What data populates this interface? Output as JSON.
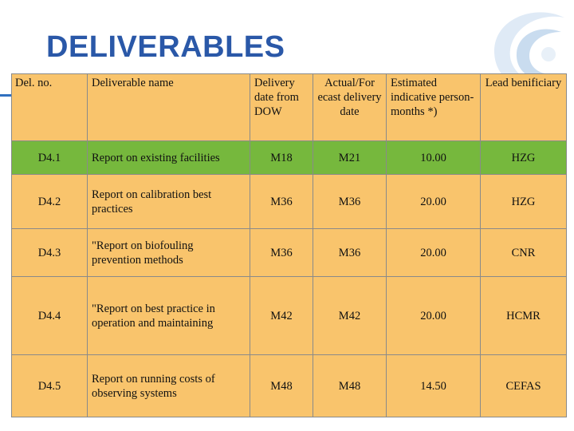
{
  "title": "DELIVERABLES",
  "colors": {
    "title": "#2a58a8",
    "cell": "#f9c46c",
    "highlight": "#76b83d"
  },
  "table": {
    "headers": [
      "Del. no.",
      "Deliverable name",
      "Delivery date from DOW",
      "Actual/For ecast delivery date",
      "Estimated indicative person-months *)",
      "Lead benificiary"
    ],
    "rows": [
      {
        "no": "D4.1",
        "name": "Report on existing facilities",
        "dow": "M18",
        "actual": "M21",
        "pm": "10.00",
        "lead": "HZG"
      },
      {
        "no": "D4.2",
        "name": "Report on calibration best practices",
        "dow": "M36",
        "actual": "M36",
        "pm": "20.00",
        "lead": "HZG"
      },
      {
        "no": "D4.3",
        "name": "\"Report on biofouling prevention methods",
        "dow": "M36",
        "actual": "M36",
        "pm": "20.00",
        "lead": "CNR"
      },
      {
        "no": "D4.4",
        "name": "\"Report on best practice in operation and maintaining",
        "dow": "M42",
        "actual": "M42",
        "pm": "20.00",
        "lead": "HCMR"
      },
      {
        "no": "D4.5",
        "name": "Report on running costs of observing systems",
        "dow": "M48",
        "actual": "M48",
        "pm": "14.50",
        "lead": "CEFAS"
      }
    ]
  }
}
